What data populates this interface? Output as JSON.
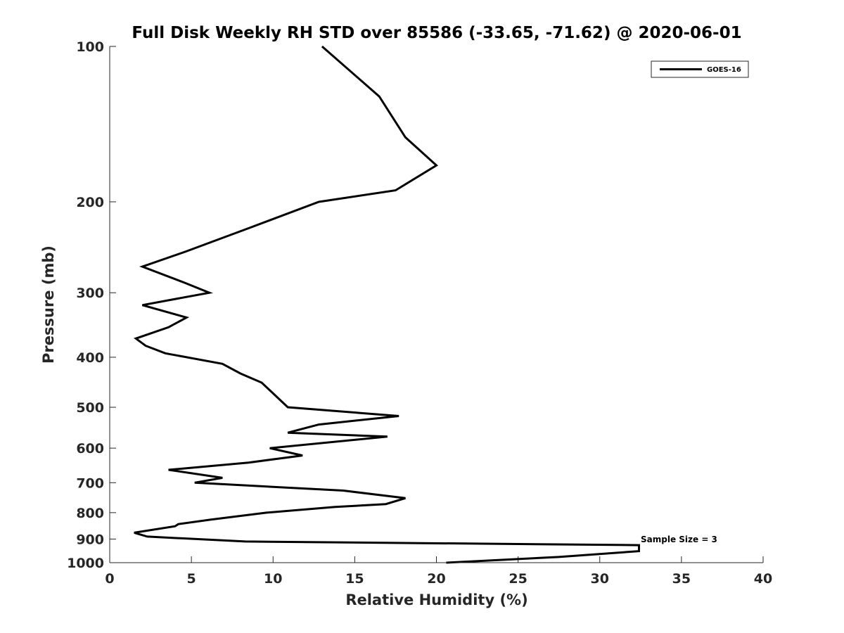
{
  "chart_data": {
    "type": "line",
    "title": "Full Disk Weekly RH STD over 85586 (-33.65, -71.62) @ 2020-06-01",
    "xlabel": "Relative Humidity (%)",
    "ylabel": "Pressure (mb)",
    "xlim": [
      0,
      40
    ],
    "ylim": [
      100,
      1000
    ],
    "y_scale": "log",
    "y_reversed": true,
    "x_ticks": [
      "0",
      "5",
      "10",
      "15",
      "20",
      "25",
      "30",
      "35",
      "40"
    ],
    "y_ticks": [
      "100",
      "200",
      "300",
      "400",
      "500",
      "600",
      "700",
      "800",
      "900",
      "1000"
    ],
    "grid": false,
    "legend_position": "top-right",
    "annotation": "Sample Size = 3",
    "series": [
      {
        "name": "GOES-16",
        "color": "#000000",
        "points": [
          [
            13.0,
            100
          ],
          [
            16.5,
            125
          ],
          [
            18.1,
            150
          ],
          [
            20.0,
            170
          ],
          [
            17.5,
            190
          ],
          [
            12.8,
            200
          ],
          [
            8.5,
            225
          ],
          [
            4.6,
            250
          ],
          [
            2.0,
            267
          ],
          [
            4.6,
            287
          ],
          [
            6.1,
            300
          ],
          [
            2.0,
            317
          ],
          [
            4.7,
            335
          ],
          [
            3.6,
            350
          ],
          [
            1.6,
            368
          ],
          [
            2.2,
            380
          ],
          [
            3.4,
            393
          ],
          [
            6.9,
            412
          ],
          [
            8.0,
            430
          ],
          [
            9.3,
            448
          ],
          [
            10.9,
            500
          ],
          [
            17.7,
            520
          ],
          [
            12.8,
            540
          ],
          [
            10.9,
            560
          ],
          [
            17.0,
            570
          ],
          [
            9.8,
            600
          ],
          [
            11.8,
            620
          ],
          [
            8.5,
            640
          ],
          [
            3.6,
            661
          ],
          [
            6.9,
            685
          ],
          [
            5.2,
            700
          ],
          [
            14.3,
            725
          ],
          [
            18.1,
            750
          ],
          [
            16.9,
            770
          ],
          [
            13.8,
            780
          ],
          [
            9.6,
            800
          ],
          [
            6.2,
            825
          ],
          [
            4.2,
            842
          ],
          [
            4.0,
            850
          ],
          [
            1.5,
            875
          ],
          [
            2.3,
            890
          ],
          [
            8.3,
            910
          ],
          [
            32.4,
            925
          ],
          [
            32.4,
            950
          ],
          [
            27.5,
            975
          ],
          [
            20.6,
            1000
          ]
        ]
      }
    ]
  }
}
